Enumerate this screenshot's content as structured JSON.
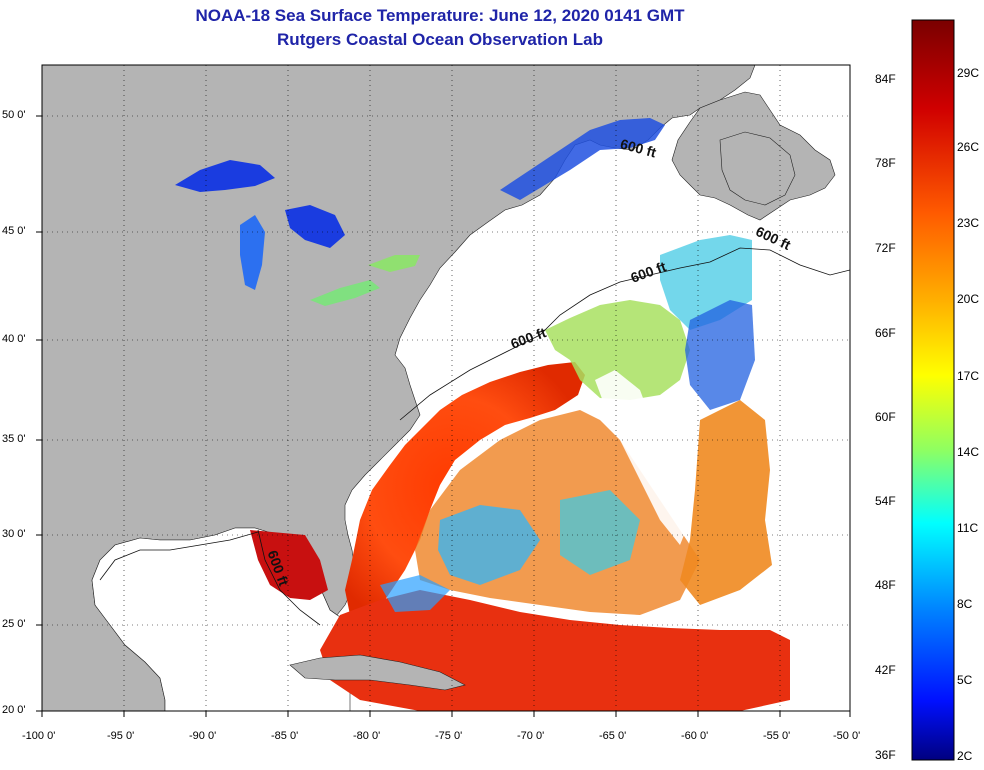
{
  "title": "NOAA-18 Sea Surface Temperature:  June 12, 2020 0141 GMT",
  "subtitle": "Rutgers Coastal Ocean Observation Lab",
  "lat_labels": [
    "50 0'",
    "45 0'",
    "40 0'",
    "35 0'",
    "30 0'",
    "25 0'",
    "20 0'"
  ],
  "lon_labels": [
    "-100 0'",
    "-95 0'",
    "-90 0'",
    "-85 0'",
    "-80 0'",
    "-75 0'",
    "-70 0'",
    "-65 0'",
    "-60 0'",
    "-55 0'",
    "-50 0'"
  ],
  "colorbar": {
    "fahrenheit": [
      "84F",
      "78F",
      "72F",
      "66F",
      "60F",
      "54F",
      "48F",
      "42F",
      "36F"
    ],
    "celsius": [
      "29C",
      "26C",
      "23C",
      "20C",
      "17C",
      "14C",
      "11C",
      "8C",
      "5C",
      "2C"
    ]
  },
  "depth_labels": [
    "600 ft",
    "600 ft",
    "600 ft",
    "600 ft",
    "600 ft"
  ],
  "colors": {
    "title": "#1f24a8",
    "land": "#b4b4b4",
    "cloud": "#ffffff"
  }
}
